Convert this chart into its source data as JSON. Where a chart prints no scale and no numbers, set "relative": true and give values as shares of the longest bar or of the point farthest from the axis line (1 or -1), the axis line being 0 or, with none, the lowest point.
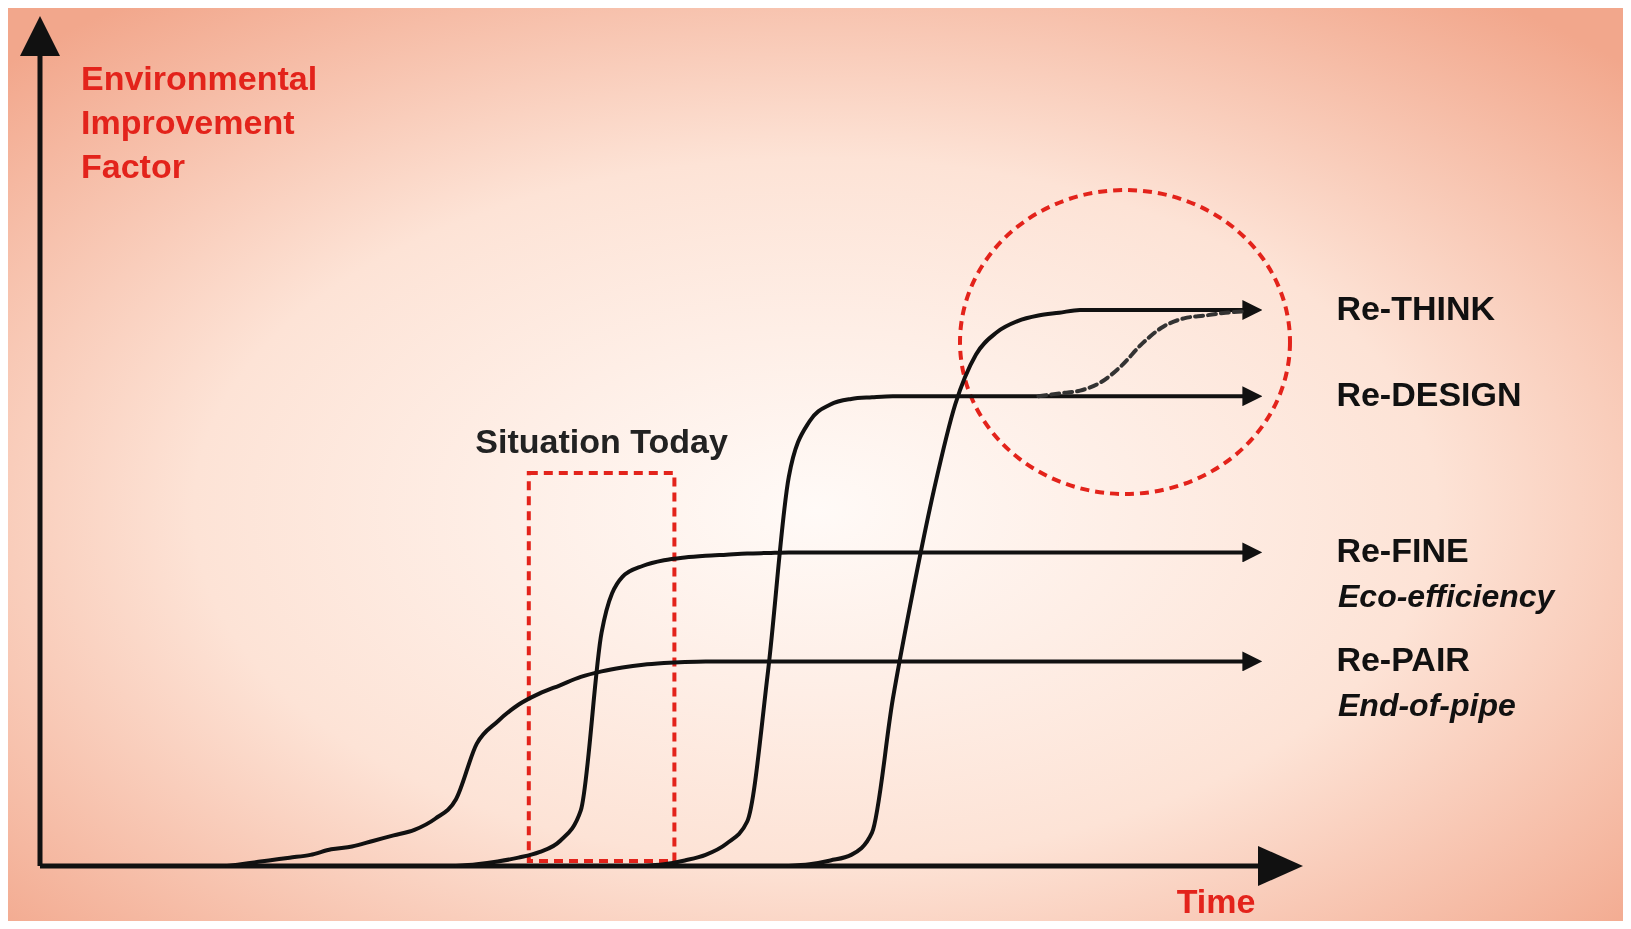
{
  "chart_data": {
    "type": "line",
    "relative": true,
    "ylabel": "Environmental Improvement Factor",
    "xlabel": "Time",
    "categories": [
      null,
      null,
      null,
      null,
      null,
      null,
      null,
      null,
      null,
      null,
      null,
      null,
      null,
      null,
      null,
      null,
      null,
      null,
      null,
      null,
      null,
      null,
      null,
      null,
      null,
      null,
      null,
      null,
      null,
      null,
      null,
      null,
      null,
      null,
      null,
      null,
      null,
      null,
      null,
      null,
      null,
      null,
      null,
      null,
      null,
      null,
      null,
      null,
      null,
      null,
      null,
      null,
      null,
      null,
      null,
      null,
      null,
      null,
      null
    ],
    "series": [
      {
        "name": "Re-THINK",
        "color": "#111111",
        "values": [
          null,
          null,
          null,
          null,
          null,
          null,
          null,
          null,
          null,
          null,
          null,
          null,
          null,
          null,
          null,
          null,
          null,
          null,
          null,
          null,
          null,
          null,
          null,
          null,
          null,
          null,
          null,
          null,
          null,
          null,
          null,
          null,
          null,
          null,
          null,
          null,
          0,
          0.003,
          0.01,
          0.02,
          0.06,
          0.3,
          0.5,
          0.68,
          0.83,
          0.92,
          0.96,
          0.98,
          0.99,
          0.995,
          1,
          1,
          1,
          1,
          1,
          1,
          1,
          1,
          1
        ]
      },
      {
        "name": "Re-DESIGN",
        "color": "#111111",
        "values": [
          null,
          null,
          null,
          null,
          null,
          null,
          null,
          null,
          null,
          null,
          null,
          null,
          null,
          null,
          null,
          null,
          null,
          null,
          null,
          null,
          null,
          null,
          null,
          null,
          null,
          null,
          null,
          null,
          null,
          0,
          0.003,
          0.01,
          0.02,
          0.04,
          0.08,
          0.35,
          0.7,
          0.8,
          0.83,
          0.84,
          0.843,
          0.845,
          0.845,
          0.845,
          0.845,
          0.845,
          0.845,
          0.845,
          0.845,
          0.845,
          0.845,
          0.845,
          0.845,
          0.845,
          0.845,
          0.845,
          0.845,
          0.845,
          0.845
        ]
      },
      {
        "name": "Re-FINE",
        "color": "#111111",
        "values": [
          null,
          null,
          null,
          null,
          null,
          null,
          null,
          null,
          null,
          null,
          null,
          null,
          null,
          null,
          null,
          null,
          null,
          null,
          null,
          null,
          0,
          0.003,
          0.008,
          0.015,
          0.025,
          0.045,
          0.1,
          0.42,
          0.52,
          0.54,
          0.55,
          0.555,
          0.558,
          0.56,
          0.562,
          0.563,
          0.564,
          0.564,
          0.564,
          0.564,
          0.564,
          0.564,
          0.564,
          0.564,
          0.564,
          0.564,
          0.564,
          0.564,
          0.564,
          0.564,
          0.564,
          0.564,
          0.564,
          0.564,
          0.564,
          0.564,
          0.564,
          0.564,
          0.564
        ]
      },
      {
        "name": "Re-PAIR",
        "color": "#111111",
        "values": [
          null,
          null,
          null,
          null,
          null,
          null,
          null,
          null,
          null,
          0,
          0.005,
          0.01,
          0.015,
          0.02,
          0.03,
          0.035,
          0.045,
          0.055,
          0.065,
          0.085,
          0.12,
          0.22,
          0.26,
          0.29,
          0.31,
          0.325,
          0.34,
          0.35,
          0.357,
          0.362,
          0.365,
          0.367,
          0.368,
          0.368,
          0.368,
          0.368,
          0.368,
          0.368,
          0.368,
          0.368,
          0.368,
          0.368,
          0.368,
          0.368,
          0.368,
          0.368,
          0.368,
          0.368,
          0.368,
          0.368,
          0.368,
          0.368,
          0.368,
          0.368,
          0.368,
          0.368,
          0.368,
          0.368,
          0.368
        ]
      },
      {
        "color": "#333333",
        "line_style": "dashed",
        "values": [
          null,
          null,
          null,
          null,
          null,
          null,
          null,
          null,
          null,
          null,
          null,
          null,
          null,
          null,
          null,
          null,
          null,
          null,
          null,
          null,
          null,
          null,
          null,
          null,
          null,
          null,
          null,
          null,
          null,
          null,
          null,
          null,
          null,
          null,
          null,
          null,
          null,
          null,
          null,
          null,
          null,
          null,
          null,
          null,
          null,
          null,
          null,
          null,
          0.845,
          0.85,
          0.855,
          0.87,
          0.9,
          0.94,
          0.97,
          0.985,
          0.99,
          0.995,
          0.998
        ]
      }
    ],
    "annotations": [
      "Situation Today",
      "Eco-efficiency",
      "End-of-pipe"
    ],
    "line_style": "solid",
    "marker": "none"
  }
}
